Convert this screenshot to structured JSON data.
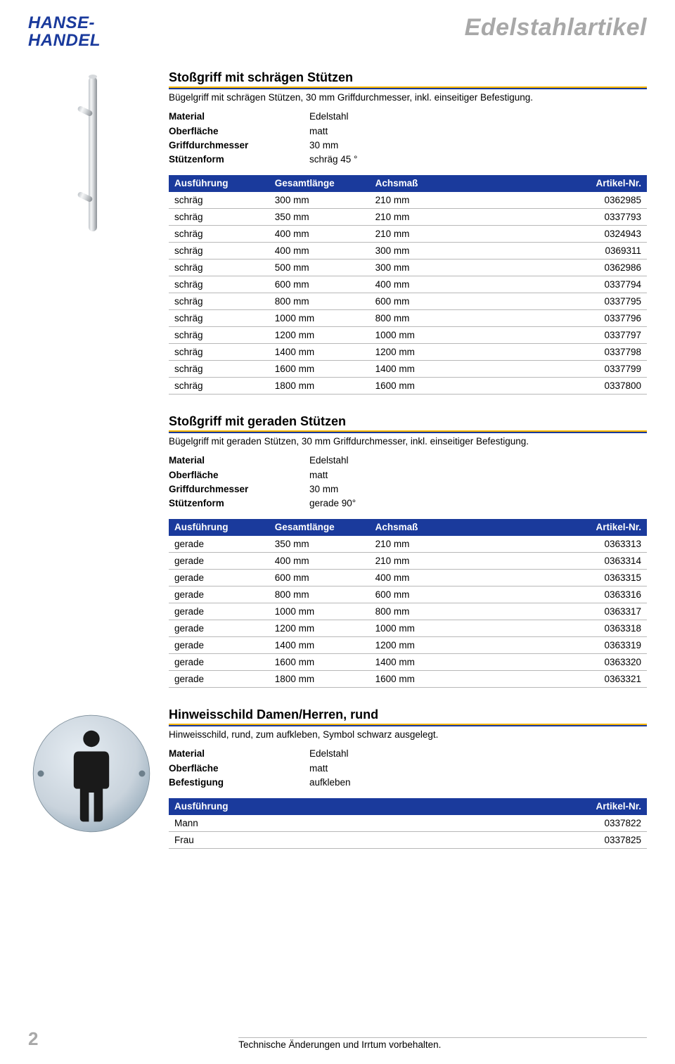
{
  "header": {
    "logo_line1": "HANSE-",
    "logo_line2": "HANDEL",
    "category": "Edelstahlartikel"
  },
  "colors": {
    "brand_blue": "#1a3a9c",
    "accent_yellow": "#f7b500",
    "grey_text": "#a8a8a8",
    "row_border": "#b8b8b8",
    "steel_light": "#e2e4e6",
    "steel_dark": "#9aa0a6",
    "sign_bg": "#c9d3dc",
    "sign_shadow": "#8fa0ad"
  },
  "section1": {
    "title": "Stoßgriff mit schrägen Stützen",
    "description": "Bügelgriff mit schrägen Stützen, 30 mm Griffdurchmesser, inkl. einseitiger Befestigung.",
    "specs": [
      {
        "label": "Material",
        "value": "Edelstahl"
      },
      {
        "label": "Oberfläche",
        "value": "matt"
      },
      {
        "label": "Griffdurchmesser",
        "value": "30 mm"
      },
      {
        "label": "Stützenform",
        "value": "schräg 45 °"
      }
    ],
    "columns": [
      "Ausführung",
      "Gesamtlänge",
      "Achsmaß",
      "Artikel-Nr."
    ],
    "rows": [
      [
        "schräg",
        "300 mm",
        "210 mm",
        "0362985"
      ],
      [
        "schräg",
        "350 mm",
        "210 mm",
        "0337793"
      ],
      [
        "schräg",
        "400 mm",
        "210 mm",
        "0324943"
      ],
      [
        "schräg",
        "400 mm",
        "300 mm",
        "0369311"
      ],
      [
        "schräg",
        "500 mm",
        "300 mm",
        "0362986"
      ],
      [
        "schräg",
        "600 mm",
        "400 mm",
        "0337794"
      ],
      [
        "schräg",
        "800 mm",
        "600 mm",
        "0337795"
      ],
      [
        "schräg",
        "1000 mm",
        "800 mm",
        "0337796"
      ],
      [
        "schräg",
        "1200 mm",
        "1000 mm",
        "0337797"
      ],
      [
        "schräg",
        "1400 mm",
        "1200 mm",
        "0337798"
      ],
      [
        "schräg",
        "1600 mm",
        "1400 mm",
        "0337799"
      ],
      [
        "schräg",
        "1800 mm",
        "1600 mm",
        "0337800"
      ]
    ]
  },
  "section2": {
    "title": "Stoßgriff mit geraden Stützen",
    "description": "Bügelgriff mit geraden Stützen, 30 mm Griffdurchmesser, inkl. einseitiger Befestigung.",
    "specs": [
      {
        "label": "Material",
        "value": "Edelstahl"
      },
      {
        "label": "Oberfläche",
        "value": "matt"
      },
      {
        "label": "Griffdurchmesser",
        "value": "30 mm"
      },
      {
        "label": "Stützenform",
        "value": "gerade 90°"
      }
    ],
    "columns": [
      "Ausführung",
      "Gesamtlänge",
      "Achsmaß",
      "Artikel-Nr."
    ],
    "rows": [
      [
        "gerade",
        "350 mm",
        "210 mm",
        "0363313"
      ],
      [
        "gerade",
        "400 mm",
        "210 mm",
        "0363314"
      ],
      [
        "gerade",
        "600 mm",
        "400 mm",
        "0363315"
      ],
      [
        "gerade",
        "800 mm",
        "600 mm",
        "0363316"
      ],
      [
        "gerade",
        "1000 mm",
        "800 mm",
        "0363317"
      ],
      [
        "gerade",
        "1200 mm",
        "1000 mm",
        "0363318"
      ],
      [
        "gerade",
        "1400 mm",
        "1200 mm",
        "0363319"
      ],
      [
        "gerade",
        "1600 mm",
        "1400 mm",
        "0363320"
      ],
      [
        "gerade",
        "1800 mm",
        "1600 mm",
        "0363321"
      ]
    ]
  },
  "section3": {
    "title": "Hinweisschild Damen/Herren, rund",
    "description": "Hinweisschild, rund, zum aufkleben, Symbol schwarz ausgelegt.",
    "specs": [
      {
        "label": "Material",
        "value": "Edelstahl"
      },
      {
        "label": "Oberfläche",
        "value": "matt"
      },
      {
        "label": "Befestigung",
        "value": "aufkleben"
      }
    ],
    "columns": [
      "Ausführung",
      "Artikel-Nr."
    ],
    "rows": [
      [
        "Mann",
        "0337822"
      ],
      [
        "Frau",
        "0337825"
      ]
    ]
  },
  "footer": {
    "page_number": "2",
    "note": "Technische Änderungen und Irrtum vorbehalten."
  }
}
